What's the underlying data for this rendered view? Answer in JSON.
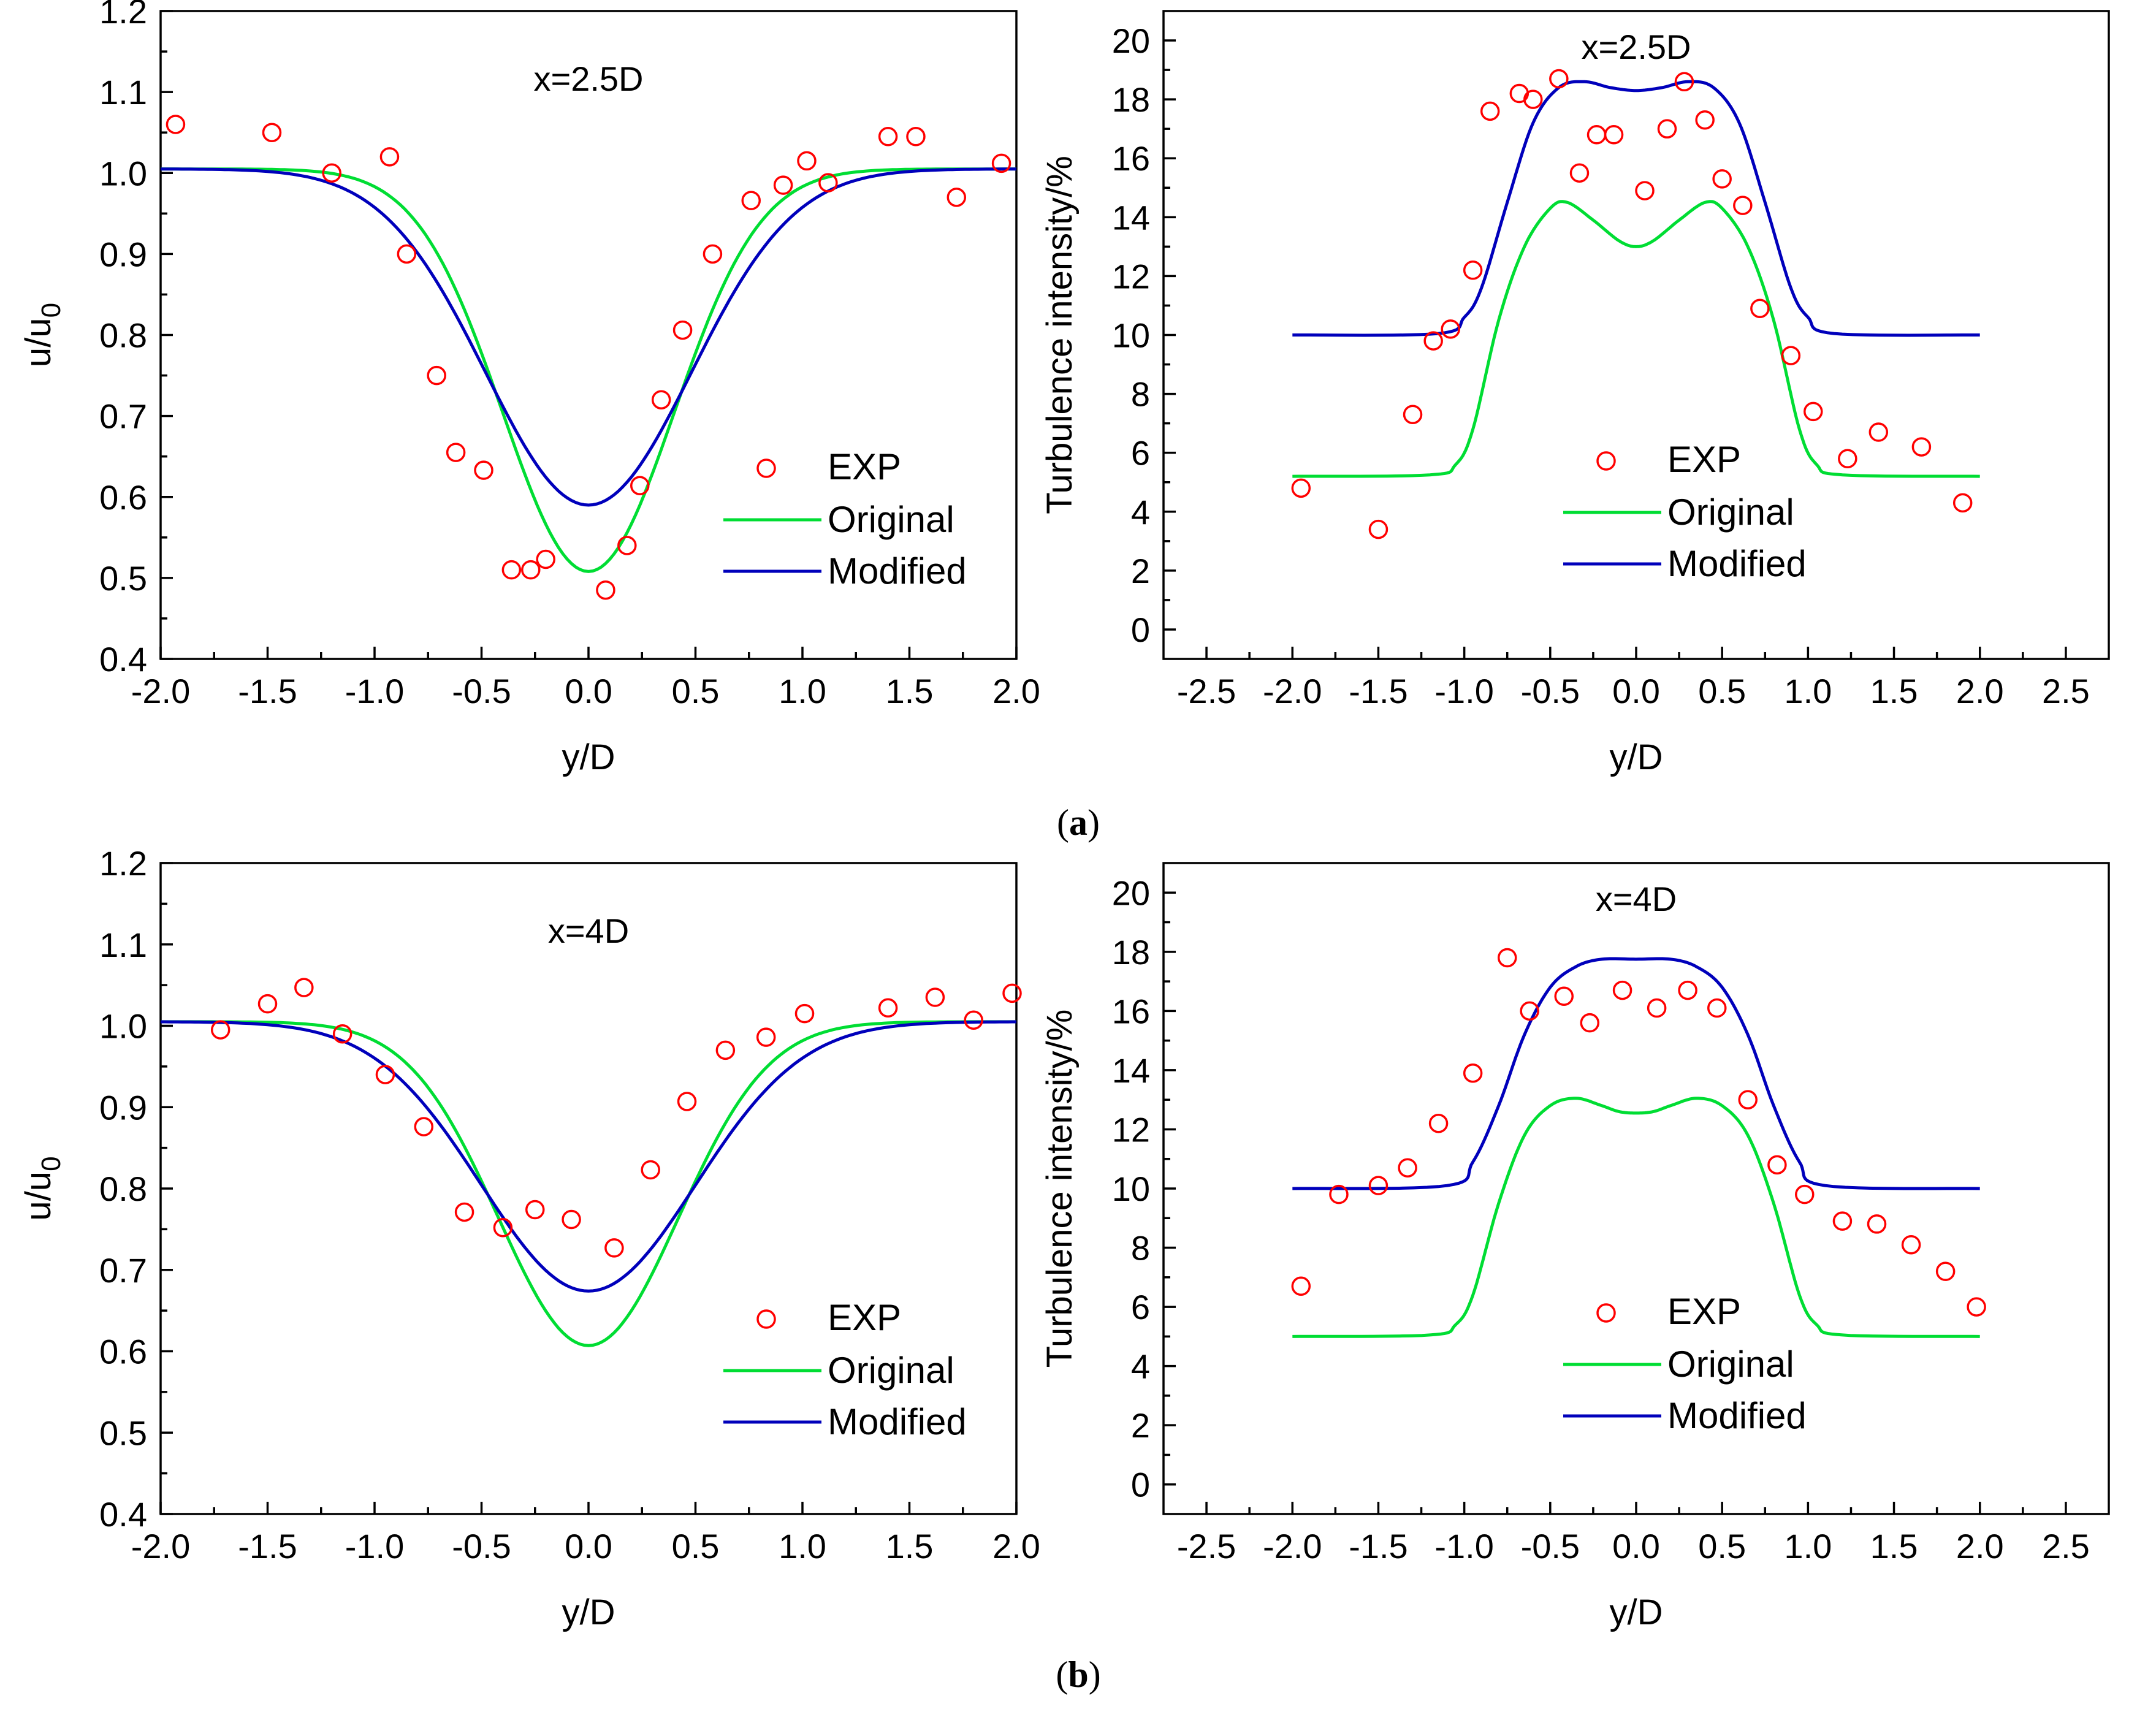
{
  "figure": {
    "panel_labels": [
      "(a)",
      "(b)"
    ],
    "legend": {
      "exp": "EXP",
      "original": "Original",
      "modified": "Modified"
    },
    "colors": {
      "exp": "#ff0000",
      "original": "#00dd33",
      "modified": "#0000bb"
    }
  },
  "chart_data": [
    {
      "id": "a-velocity",
      "type": "line",
      "annotation": "x=2.5D",
      "xlabel": "y/D",
      "ylabel": "u/u0",
      "xlim": [
        -2.0,
        2.0
      ],
      "ylim": [
        0.4,
        1.2
      ],
      "xticks": [
        "-2.0",
        "-1.5",
        "-1.0",
        "-0.5",
        "0.0",
        "0.5",
        "1.0",
        "1.5",
        "2.0"
      ],
      "yticks": [
        "0.4",
        "0.5",
        "0.6",
        "0.7",
        "0.8",
        "0.9",
        "1.0",
        "1.1",
        "1.2"
      ],
      "legend_position": "lower-right",
      "exp": [
        [
          -1.93,
          1.06
        ],
        [
          -1.48,
          1.05
        ],
        [
          -1.2,
          1.0
        ],
        [
          -0.93,
          1.02
        ],
        [
          -0.85,
          0.9
        ],
        [
          -0.71,
          0.75
        ],
        [
          -0.62,
          0.655
        ],
        [
          -0.49,
          0.633
        ],
        [
          -0.36,
          0.51
        ],
        [
          -0.27,
          0.51
        ],
        [
          -0.2,
          0.523
        ],
        [
          0.08,
          0.485
        ],
        [
          0.18,
          0.54
        ],
        [
          0.24,
          0.614
        ],
        [
          0.34,
          0.72
        ],
        [
          0.44,
          0.806
        ],
        [
          0.58,
          0.9
        ],
        [
          0.76,
          0.966
        ],
        [
          0.91,
          0.985
        ],
        [
          1.02,
          1.015
        ],
        [
          1.12,
          0.988
        ],
        [
          1.4,
          1.045
        ],
        [
          1.53,
          1.045
        ],
        [
          1.72,
          0.97
        ],
        [
          1.93,
          1.012
        ]
      ],
      "series": [
        {
          "name": "Original",
          "model": "gauss",
          "base": 1.005,
          "depth": 0.497,
          "width": 0.4
        },
        {
          "name": "Modified",
          "model": "gauss",
          "base": 1.005,
          "depth": 0.415,
          "width": 0.48
        }
      ]
    },
    {
      "id": "a-turbulence",
      "type": "line",
      "annotation": "x=2.5D",
      "xlabel": "y/D",
      "ylabel": "Turbulence intensity/%",
      "xlim": [
        -2.5,
        2.5
      ],
      "ylim": [
        0,
        20
      ],
      "xticks": [
        "-2.5",
        "-2.0",
        "-1.5",
        "-1.0",
        "-0.5",
        "0.0",
        "0.5",
        "1.0",
        "1.5",
        "2.0",
        "2.5"
      ],
      "yticks": [
        "0",
        "2",
        "4",
        "6",
        "8",
        "10",
        "12",
        "14",
        "16",
        "18",
        "20"
      ],
      "legend_position": "lower-center",
      "exp": [
        [
          -1.95,
          4.8
        ],
        [
          -1.5,
          3.4
        ],
        [
          -1.3,
          7.3
        ],
        [
          -1.18,
          9.8
        ],
        [
          -1.08,
          10.2
        ],
        [
          -0.95,
          12.2
        ],
        [
          -0.85,
          17.6
        ],
        [
          -0.68,
          18.2
        ],
        [
          -0.6,
          18.0
        ],
        [
          -0.45,
          18.7
        ],
        [
          -0.33,
          15.5
        ],
        [
          -0.23,
          16.8
        ],
        [
          -0.13,
          16.8
        ],
        [
          0.05,
          14.9
        ],
        [
          0.18,
          17.0
        ],
        [
          0.28,
          18.6
        ],
        [
          0.4,
          17.3
        ],
        [
          0.5,
          15.3
        ],
        [
          0.62,
          14.4
        ],
        [
          0.72,
          10.9
        ],
        [
          0.9,
          9.3
        ],
        [
          1.03,
          7.4
        ],
        [
          1.23,
          5.8
        ],
        [
          1.41,
          6.7
        ],
        [
          1.66,
          6.2
        ],
        [
          1.9,
          4.3
        ]
      ],
      "series": [
        {
          "name": "Original",
          "model": "plateau",
          "x": [
            -2.0,
            -1.2,
            -1.05,
            -0.95,
            -0.8,
            -0.65,
            -0.5,
            -0.4,
            -0.25,
            -0.1,
            0.0,
            0.1,
            0.25,
            0.4,
            0.5,
            0.65,
            0.8,
            0.95,
            1.05,
            1.2,
            2.0
          ],
          "y": [
            5.2,
            5.25,
            5.6,
            6.8,
            10.5,
            13.0,
            14.3,
            14.5,
            13.9,
            13.2,
            13.0,
            13.2,
            13.9,
            14.5,
            14.3,
            13.0,
            10.5,
            6.8,
            5.6,
            5.25,
            5.2
          ]
        },
        {
          "name": "Modified",
          "model": "plateau",
          "x": [
            -2.0,
            -1.15,
            -1.0,
            -0.9,
            -0.75,
            -0.6,
            -0.45,
            -0.3,
            -0.15,
            0.0,
            0.15,
            0.3,
            0.45,
            0.6,
            0.75,
            0.9,
            1.0,
            1.15,
            2.0
          ],
          "y": [
            10.0,
            10.05,
            10.6,
            11.6,
            14.5,
            17.2,
            18.4,
            18.6,
            18.4,
            18.3,
            18.4,
            18.6,
            18.4,
            17.2,
            14.5,
            11.6,
            10.6,
            10.05,
            10.0
          ]
        }
      ]
    },
    {
      "id": "b-velocity",
      "type": "line",
      "annotation": "x=4D",
      "xlabel": "y/D",
      "ylabel": "u/u0",
      "xlim": [
        -2.0,
        2.0
      ],
      "ylim": [
        0.4,
        1.2
      ],
      "xticks": [
        "-2.0",
        "-1.5",
        "-1.0",
        "-0.5",
        "0.0",
        "0.5",
        "1.0",
        "1.5",
        "2.0"
      ],
      "yticks": [
        "0.4",
        "0.5",
        "0.6",
        "0.7",
        "0.8",
        "0.9",
        "1.0",
        "1.1",
        "1.2"
      ],
      "legend_position": "lower-right",
      "exp": [
        [
          -1.72,
          0.995
        ],
        [
          -1.5,
          1.027
        ],
        [
          -1.33,
          1.047
        ],
        [
          -1.15,
          0.99
        ],
        [
          -0.95,
          0.94
        ],
        [
          -0.77,
          0.876
        ],
        [
          -0.58,
          0.771
        ],
        [
          -0.4,
          0.752
        ],
        [
          -0.25,
          0.774
        ],
        [
          -0.08,
          0.762
        ],
        [
          0.12,
          0.727
        ],
        [
          0.29,
          0.823
        ],
        [
          0.46,
          0.907
        ],
        [
          0.64,
          0.97
        ],
        [
          0.83,
          0.986
        ],
        [
          1.01,
          1.015
        ],
        [
          1.4,
          1.022
        ],
        [
          1.62,
          1.035
        ],
        [
          1.8,
          1.007
        ],
        [
          1.98,
          1.04
        ]
      ],
      "series": [
        {
          "name": "Original",
          "model": "gauss",
          "base": 1.005,
          "depth": 0.398,
          "width": 0.42
        },
        {
          "name": "Modified",
          "model": "gauss",
          "base": 1.005,
          "depth": 0.331,
          "width": 0.5
        }
      ]
    },
    {
      "id": "b-turbulence",
      "type": "line",
      "annotation": "x=4D",
      "xlabel": "y/D",
      "ylabel": "Turbulence intensity/%",
      "xlim": [
        -2.5,
        2.5
      ],
      "ylim": [
        0,
        20
      ],
      "xticks": [
        "-2.5",
        "-2.0",
        "-1.5",
        "-1.0",
        "-0.5",
        "0.0",
        "0.5",
        "1.0",
        "1.5",
        "2.0",
        "2.5"
      ],
      "yticks": [
        "0",
        "2",
        "4",
        "6",
        "8",
        "10",
        "12",
        "14",
        "16",
        "18",
        "20"
      ],
      "legend_position": "lower-center",
      "exp": [
        [
          -1.95,
          6.7
        ],
        [
          -1.73,
          9.8
        ],
        [
          -1.5,
          10.1
        ],
        [
          -1.33,
          10.7
        ],
        [
          -1.15,
          12.2
        ],
        [
          -0.95,
          13.9
        ],
        [
          -0.75,
          17.8
        ],
        [
          -0.62,
          16.0
        ],
        [
          -0.42,
          16.5
        ],
        [
          -0.27,
          15.6
        ],
        [
          -0.08,
          16.7
        ],
        [
          0.12,
          16.1
        ],
        [
          0.3,
          16.7
        ],
        [
          0.47,
          16.1
        ],
        [
          0.65,
          13.0
        ],
        [
          0.82,
          10.8
        ],
        [
          0.98,
          9.8
        ],
        [
          1.2,
          8.9
        ],
        [
          1.4,
          8.8
        ],
        [
          1.6,
          8.1
        ],
        [
          1.8,
          7.2
        ],
        [
          1.98,
          6.0
        ]
      ],
      "series": [
        {
          "name": "Original",
          "model": "plateau",
          "x": [
            -2.0,
            -1.2,
            -1.05,
            -0.95,
            -0.8,
            -0.65,
            -0.5,
            -0.35,
            -0.2,
            -0.1,
            0.0,
            0.1,
            0.2,
            0.35,
            0.5,
            0.65,
            0.8,
            0.95,
            1.05,
            1.2,
            2.0
          ],
          "y": [
            5.0,
            5.05,
            5.4,
            6.4,
            9.5,
            11.8,
            12.8,
            13.05,
            12.8,
            12.6,
            12.55,
            12.6,
            12.8,
            13.05,
            12.8,
            11.8,
            9.5,
            6.4,
            5.4,
            5.05,
            5.0
          ]
        },
        {
          "name": "Modified",
          "model": "plateau",
          "x": [
            -2.0,
            -1.1,
            -0.95,
            -0.8,
            -0.65,
            -0.5,
            -0.35,
            -0.2,
            0.0,
            0.2,
            0.35,
            0.5,
            0.65,
            0.8,
            0.95,
            1.1,
            2.0
          ],
          "y": [
            10.0,
            10.1,
            10.9,
            12.8,
            15.2,
            16.8,
            17.5,
            17.75,
            17.75,
            17.75,
            17.5,
            16.8,
            15.2,
            12.8,
            10.9,
            10.1,
            10.0
          ]
        }
      ]
    }
  ]
}
